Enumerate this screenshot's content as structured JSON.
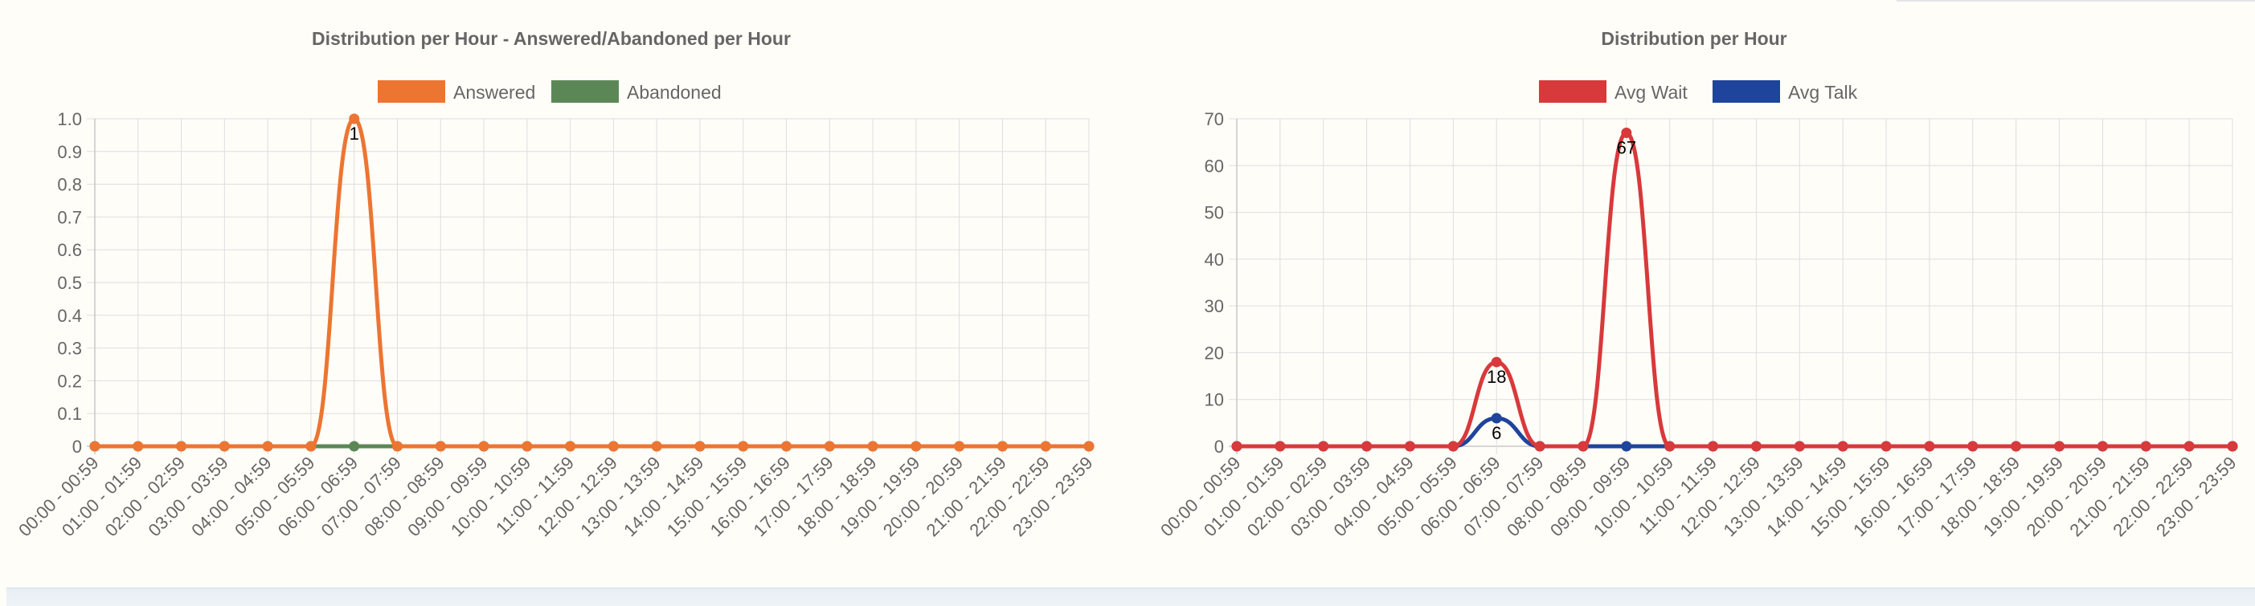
{
  "chart_data": [
    {
      "type": "line",
      "title": "Distribution per Hour - Answered/Abandoned per Hour",
      "categories": [
        "00:00 - 00:59",
        "01:00 - 01:59",
        "02:00 - 02:59",
        "03:00 - 03:59",
        "04:00 - 04:59",
        "05:00 - 05:59",
        "06:00 - 06:59",
        "07:00 - 07:59",
        "08:00 - 08:59",
        "09:00 - 09:59",
        "10:00 - 10:59",
        "11:00 - 11:59",
        "12:00 - 12:59",
        "13:00 - 13:59",
        "14:00 - 14:59",
        "15:00 - 15:59",
        "16:00 - 16:59",
        "17:00 - 17:59",
        "18:00 - 18:59",
        "19:00 - 19:59",
        "20:00 - 20:59",
        "21:00 - 21:59",
        "22:00 - 22:59",
        "23:00 - 23:59"
      ],
      "ylim": [
        0,
        1.0
      ],
      "yticks": [
        "0",
        "0.1",
        "0.2",
        "0.3",
        "0.4",
        "0.5",
        "0.6",
        "0.7",
        "0.8",
        "0.9",
        "1.0"
      ],
      "grid": true,
      "legend_position": "top",
      "series": [
        {
          "name": "Abandoned",
          "color": "#5b8757",
          "values": [
            0,
            0,
            0,
            0,
            0,
            0,
            0,
            0,
            0,
            0,
            0,
            0,
            0,
            0,
            0,
            0,
            0,
            0,
            0,
            0,
            0,
            0,
            0,
            0
          ]
        },
        {
          "name": "Answered",
          "color": "#ec7532",
          "values": [
            0,
            0,
            0,
            0,
            0,
            0,
            1,
            0,
            0,
            0,
            0,
            0,
            0,
            0,
            0,
            0,
            0,
            0,
            0,
            0,
            0,
            0,
            0,
            0
          ]
        }
      ],
      "data_labels": [
        {
          "series": "Answered",
          "index": 6,
          "text": "1"
        }
      ]
    },
    {
      "type": "line",
      "title": "Distribution per Hour",
      "categories": [
        "00:00 - 00:59",
        "01:00 - 01:59",
        "02:00 - 02:59",
        "03:00 - 03:59",
        "04:00 - 04:59",
        "05:00 - 05:59",
        "06:00 - 06:59",
        "07:00 - 07:59",
        "08:00 - 08:59",
        "09:00 - 09:59",
        "10:00 - 10:59",
        "11:00 - 11:59",
        "12:00 - 12:59",
        "13:00 - 13:59",
        "14:00 - 14:59",
        "15:00 - 15:59",
        "16:00 - 16:59",
        "17:00 - 17:59",
        "18:00 - 18:59",
        "19:00 - 19:59",
        "20:00 - 20:59",
        "21:00 - 21:59",
        "22:00 - 22:59",
        "23:00 - 23:59"
      ],
      "ylim": [
        0,
        70
      ],
      "yticks": [
        "0",
        "10",
        "20",
        "30",
        "40",
        "50",
        "60",
        "70"
      ],
      "grid": true,
      "legend_position": "top",
      "series": [
        {
          "name": "Avg Talk",
          "color": "#1f449b",
          "values": [
            0,
            0,
            0,
            0,
            0,
            0,
            6,
            0,
            0,
            0,
            0,
            0,
            0,
            0,
            0,
            0,
            0,
            0,
            0,
            0,
            0,
            0,
            0,
            0
          ]
        },
        {
          "name": "Avg Wait",
          "color": "#d8393b",
          "values": [
            0,
            0,
            0,
            0,
            0,
            0,
            18,
            0,
            0,
            67,
            0,
            0,
            0,
            0,
            0,
            0,
            0,
            0,
            0,
            0,
            0,
            0,
            0,
            0
          ]
        }
      ],
      "data_labels": [
        {
          "series": "Avg Wait",
          "index": 6,
          "text": "18"
        },
        {
          "series": "Avg Talk",
          "index": 6,
          "text": "6"
        },
        {
          "series": "Avg Wait",
          "index": 9,
          "text": "67"
        }
      ]
    }
  ]
}
